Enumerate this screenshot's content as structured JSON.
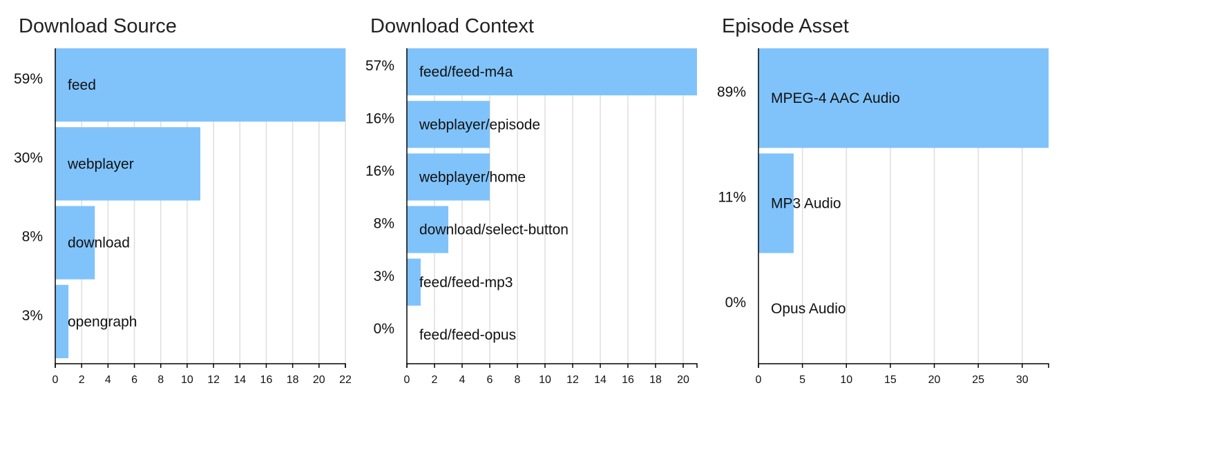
{
  "chart_data": [
    {
      "type": "bar",
      "orientation": "horizontal",
      "title": "Download Source",
      "categories": [
        "feed",
        "webplayer",
        "download",
        "opengraph"
      ],
      "values": [
        22,
        11,
        3,
        1
      ],
      "percent_labels": [
        "59%",
        "30%",
        "8%",
        "3%"
      ],
      "xlim": [
        0,
        22
      ],
      "xticks": [
        0,
        2,
        4,
        6,
        8,
        10,
        12,
        14,
        16,
        18,
        20,
        22
      ],
      "grid": true,
      "bar_color": "#80c3fb"
    },
    {
      "type": "bar",
      "orientation": "horizontal",
      "title": "Download Context",
      "categories": [
        "feed/feed-m4a",
        "webplayer/episode",
        "webplayer/home",
        "download/select-button",
        "feed/feed-mp3",
        "feed/feed-opus"
      ],
      "values": [
        21,
        6,
        6,
        3,
        1,
        0
      ],
      "percent_labels": [
        "57%",
        "16%",
        "16%",
        "8%",
        "3%",
        "0%"
      ],
      "xlim": [
        0,
        21
      ],
      "xticks": [
        0,
        2,
        4,
        6,
        8,
        10,
        12,
        14,
        16,
        18,
        20
      ],
      "grid": true,
      "bar_color": "#80c3fb"
    },
    {
      "type": "bar",
      "orientation": "horizontal",
      "title": "Episode Asset",
      "categories": [
        "MPEG-4 AAC Audio",
        "MP3 Audio",
        "Opus Audio"
      ],
      "values": [
        33,
        4,
        0
      ],
      "percent_labels": [
        "89%",
        "11%",
        "0%"
      ],
      "xlim": [
        0,
        33
      ],
      "xticks": [
        0,
        5,
        10,
        15,
        20,
        25,
        30
      ],
      "grid": true,
      "bar_color": "#80c3fb"
    }
  ]
}
